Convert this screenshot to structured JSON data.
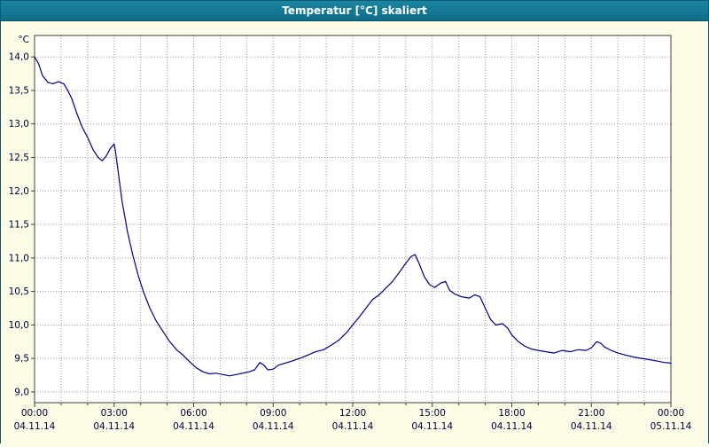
{
  "window": {
    "title": "Temperatur [°C] skaliert"
  },
  "colors": {
    "titlebar": "#0f6d89",
    "background": "#fbfbe6",
    "plot_background": "#ffffff",
    "grid": "#999999",
    "plot_border": "#404040",
    "series_line": "#000080",
    "axis_text": "#00003c"
  },
  "chart_data": {
    "type": "line",
    "title": "Temperatur [°C] skaliert",
    "unit_label": "°C",
    "xlabel": "",
    "ylabel": "°C",
    "ylim": [
      8.84,
      14.32
    ],
    "x_range_hours": [
      0,
      24
    ],
    "grid": {
      "x_step_hours": 1,
      "y_step": 0.5,
      "style": "dotted"
    },
    "legend": "none",
    "y_ticks": [
      {
        "v": 14.0,
        "label": "14,0"
      },
      {
        "v": 13.5,
        "label": "13,5"
      },
      {
        "v": 13.0,
        "label": "13,0"
      },
      {
        "v": 12.5,
        "label": "12,5"
      },
      {
        "v": 12.0,
        "label": "12,0"
      },
      {
        "v": 11.5,
        "label": "11,5"
      },
      {
        "v": 11.0,
        "label": "11,0"
      },
      {
        "v": 10.5,
        "label": "10,5"
      },
      {
        "v": 10.0,
        "label": "10,0"
      },
      {
        "v": 9.5,
        "label": "9,5"
      },
      {
        "v": 9.0,
        "label": "9,0"
      }
    ],
    "x_ticks": [
      {
        "hour": 0,
        "time": "00:00",
        "date": "04.11.14"
      },
      {
        "hour": 3,
        "time": "03:00",
        "date": "04.11.14"
      },
      {
        "hour": 6,
        "time": "06:00",
        "date": "04.11.14"
      },
      {
        "hour": 9,
        "time": "09:00",
        "date": "04.11.14"
      },
      {
        "hour": 12,
        "time": "12:00",
        "date": "04.11.14"
      },
      {
        "hour": 15,
        "time": "15:00",
        "date": "04.11.14"
      },
      {
        "hour": 18,
        "time": "18:00",
        "date": "04.11.14"
      },
      {
        "hour": 21,
        "time": "21:00",
        "date": "04.11.14"
      },
      {
        "hour": 24,
        "time": "00:00",
        "date": "05.11.14"
      }
    ],
    "series": [
      {
        "name": "Temperatur",
        "color": "#000080",
        "points": [
          [
            0.0,
            14.0
          ],
          [
            0.15,
            13.9
          ],
          [
            0.3,
            13.72
          ],
          [
            0.5,
            13.62
          ],
          [
            0.7,
            13.6
          ],
          [
            0.9,
            13.63
          ],
          [
            1.1,
            13.6
          ],
          [
            1.25,
            13.5
          ],
          [
            1.4,
            13.38
          ],
          [
            1.6,
            13.15
          ],
          [
            1.8,
            12.95
          ],
          [
            2.0,
            12.8
          ],
          [
            2.2,
            12.62
          ],
          [
            2.4,
            12.5
          ],
          [
            2.55,
            12.45
          ],
          [
            2.7,
            12.52
          ],
          [
            2.85,
            12.63
          ],
          [
            3.0,
            12.7
          ],
          [
            3.05,
            12.6
          ],
          [
            3.15,
            12.3
          ],
          [
            3.3,
            11.85
          ],
          [
            3.5,
            11.4
          ],
          [
            3.7,
            11.05
          ],
          [
            3.9,
            10.75
          ],
          [
            4.1,
            10.5
          ],
          [
            4.35,
            10.25
          ],
          [
            4.6,
            10.05
          ],
          [
            4.85,
            9.9
          ],
          [
            5.1,
            9.75
          ],
          [
            5.35,
            9.63
          ],
          [
            5.6,
            9.55
          ],
          [
            5.85,
            9.45
          ],
          [
            6.1,
            9.36
          ],
          [
            6.35,
            9.3
          ],
          [
            6.6,
            9.27
          ],
          [
            6.85,
            9.28
          ],
          [
            7.1,
            9.26
          ],
          [
            7.35,
            9.24
          ],
          [
            7.6,
            9.26
          ],
          [
            7.85,
            9.28
          ],
          [
            8.1,
            9.3
          ],
          [
            8.3,
            9.33
          ],
          [
            8.5,
            9.44
          ],
          [
            8.65,
            9.4
          ],
          [
            8.8,
            9.33
          ],
          [
            9.0,
            9.34
          ],
          [
            9.2,
            9.4
          ],
          [
            9.45,
            9.43
          ],
          [
            9.7,
            9.46
          ],
          [
            10.0,
            9.5
          ],
          [
            10.3,
            9.55
          ],
          [
            10.6,
            9.6
          ],
          [
            10.9,
            9.63
          ],
          [
            11.2,
            9.7
          ],
          [
            11.5,
            9.78
          ],
          [
            11.8,
            9.9
          ],
          [
            12.0,
            10.0
          ],
          [
            12.25,
            10.12
          ],
          [
            12.5,
            10.25
          ],
          [
            12.75,
            10.38
          ],
          [
            13.0,
            10.45
          ],
          [
            13.25,
            10.55
          ],
          [
            13.5,
            10.65
          ],
          [
            13.75,
            10.78
          ],
          [
            14.0,
            10.92
          ],
          [
            14.2,
            11.02
          ],
          [
            14.35,
            11.05
          ],
          [
            14.5,
            10.92
          ],
          [
            14.7,
            10.72
          ],
          [
            14.9,
            10.6
          ],
          [
            15.1,
            10.56
          ],
          [
            15.3,
            10.62
          ],
          [
            15.5,
            10.65
          ],
          [
            15.65,
            10.52
          ],
          [
            15.85,
            10.46
          ],
          [
            16.1,
            10.42
          ],
          [
            16.4,
            10.4
          ],
          [
            16.6,
            10.45
          ],
          [
            16.8,
            10.42
          ],
          [
            17.0,
            10.25
          ],
          [
            17.2,
            10.08
          ],
          [
            17.4,
            10.0
          ],
          [
            17.65,
            10.02
          ],
          [
            17.85,
            9.95
          ],
          [
            18.0,
            9.85
          ],
          [
            18.25,
            9.75
          ],
          [
            18.5,
            9.68
          ],
          [
            18.75,
            9.64
          ],
          [
            19.0,
            9.62
          ],
          [
            19.3,
            9.6
          ],
          [
            19.6,
            9.58
          ],
          [
            19.9,
            9.62
          ],
          [
            20.2,
            9.6
          ],
          [
            20.5,
            9.63
          ],
          [
            20.8,
            9.62
          ],
          [
            21.0,
            9.66
          ],
          [
            21.2,
            9.75
          ],
          [
            21.35,
            9.73
          ],
          [
            21.5,
            9.67
          ],
          [
            21.75,
            9.62
          ],
          [
            22.0,
            9.58
          ],
          [
            22.3,
            9.55
          ],
          [
            22.6,
            9.52
          ],
          [
            22.9,
            9.5
          ],
          [
            23.2,
            9.48
          ],
          [
            23.5,
            9.46
          ],
          [
            23.75,
            9.44
          ],
          [
            24.0,
            9.43
          ]
        ]
      }
    ]
  }
}
